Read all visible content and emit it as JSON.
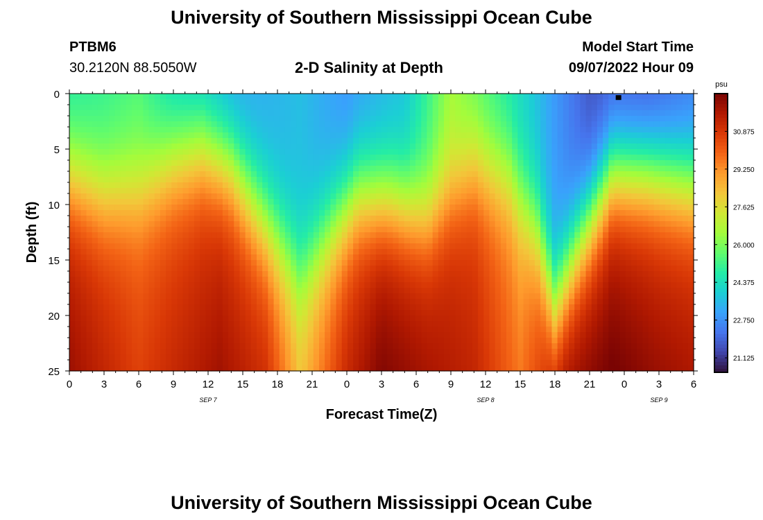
{
  "header": {
    "title": "University of Southern Mississippi Ocean Cube",
    "station_id": "PTBM6",
    "coords": "30.2120N  88.5050W",
    "chart_title": "2-D Salinity at Depth",
    "model_start_label": "Model Start Time",
    "model_start_value": "09/07/2022 Hour 09"
  },
  "footer": {
    "title_repeat": "University of Southern Mississippi Ocean Cube"
  },
  "chart_data": {
    "type": "heatmap",
    "title": "2-D Salinity at Depth",
    "xlabel": "Forecast Time(Z)",
    "ylabel": "Depth (ft)",
    "x_range_hours": [
      0,
      54
    ],
    "x_tick_labels": [
      "0",
      "3",
      "6",
      "9",
      "12",
      "15",
      "18",
      "21",
      "0",
      "3",
      "6",
      "9",
      "12",
      "15",
      "18",
      "21",
      "0",
      "3",
      "6"
    ],
    "date_labels": [
      {
        "label": "SEP 7",
        "hour": 12
      },
      {
        "label": "SEP 8",
        "hour": 36
      },
      {
        "label": "SEP 9",
        "hour": 51
      }
    ],
    "y_range_ft": [
      0,
      25
    ],
    "y_tick_labels": [
      "0",
      "5",
      "10",
      "15",
      "20",
      "25"
    ],
    "colorbar": {
      "unit": "psu",
      "min": 20.5,
      "max": 32.5,
      "tick_labels": [
        "30.875",
        "29.250",
        "27.625",
        "26.000",
        "24.375",
        "22.750",
        "21.125"
      ],
      "colors": [
        "#30123b",
        "#4145ab",
        "#4675ed",
        "#39a2fc",
        "#1bcfd4",
        "#24eca6",
        "#61fc6c",
        "#a4fc3b",
        "#d1e834",
        "#f3c63a",
        "#fe9b2d",
        "#f36315",
        "#d93806",
        "#b11901",
        "#7a0403"
      ]
    },
    "series": [
      {
        "name": "salinity_field_columns",
        "description": "salinity psu per column hour (0..54) and depth (0..25 ft)"
      }
    ],
    "field_model": {
      "surface_psu": [
        [
          0,
          24.6
        ],
        [
          6,
          25.3
        ],
        [
          9,
          24.0
        ],
        [
          14,
          23.0
        ],
        [
          20,
          23.6
        ],
        [
          24,
          22.8
        ],
        [
          29,
          23.6
        ],
        [
          33,
          26.4
        ],
        [
          36,
          25.2
        ],
        [
          40,
          23.8
        ],
        [
          45,
          21.6
        ],
        [
          50,
          21.5
        ],
        [
          54,
          22.2
        ]
      ],
      "bottom_psu": [
        [
          0,
          32.0
        ],
        [
          6,
          30.6
        ],
        [
          9,
          31.2
        ],
        [
          13,
          31.9
        ],
        [
          17,
          31.0
        ],
        [
          20,
          28.3
        ],
        [
          24,
          31.2
        ],
        [
          27,
          32.4
        ],
        [
          31,
          31.8
        ],
        [
          35,
          31.3
        ],
        [
          39,
          29.6
        ],
        [
          43,
          31.8
        ],
        [
          47,
          32.6
        ],
        [
          51,
          32.0
        ],
        [
          54,
          31.7
        ]
      ],
      "halocline_depth_ft": [
        [
          0,
          7.5
        ],
        [
          3,
          9.0
        ],
        [
          6,
          8.5
        ],
        [
          9,
          6.0
        ],
        [
          11.5,
          5.0
        ],
        [
          14,
          6.5
        ],
        [
          17,
          11.5
        ],
        [
          20,
          16.0
        ],
        [
          23,
          11.5
        ],
        [
          25,
          9.0
        ],
        [
          28,
          9.5
        ],
        [
          31,
          11.0
        ],
        [
          35,
          6.5
        ],
        [
          38,
          7.5
        ],
        [
          40.5,
          12.5
        ],
        [
          42,
          18.5
        ],
        [
          44,
          13.5
        ],
        [
          47,
          7.0
        ],
        [
          50,
          7.0
        ],
        [
          54,
          8.0
        ]
      ],
      "marker": {
        "hour": 47.5,
        "depth_ft": 0.2
      }
    }
  }
}
